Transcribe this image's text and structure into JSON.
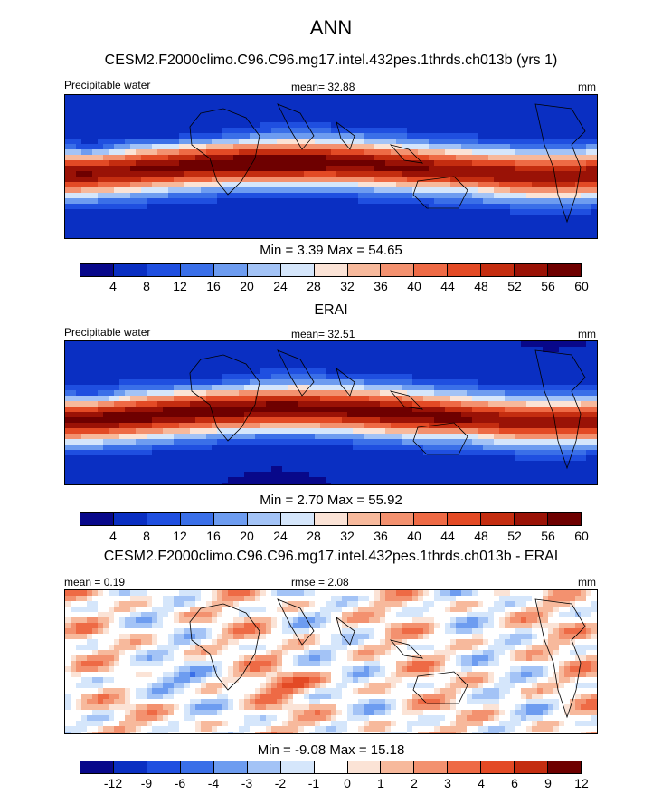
{
  "title": "ANN",
  "colors": {
    "abs_scale": [
      "#08088a",
      "#0a2fc2",
      "#1f4fe0",
      "#3a6fe8",
      "#6d9cf0",
      "#a3c3f6",
      "#d5e6fb",
      "#fbe3d6",
      "#f7b99c",
      "#f3916f",
      "#ee6a45",
      "#e34a25",
      "#c42d10",
      "#9a1206",
      "#6e0000"
    ],
    "diff_scale": [
      "#08088a",
      "#0a2fc2",
      "#1f4fe0",
      "#3a6fe8",
      "#6d9cf0",
      "#a3c3f6",
      "#d5e6fb",
      "#ffffff",
      "#fbe3d6",
      "#f7b99c",
      "#f3916f",
      "#ee6a45",
      "#e34a25",
      "#c42d10",
      "#6e0000"
    ]
  },
  "chart_data": [
    {
      "type": "heatmap",
      "title": "CESM2.F2000climo.C96.C96.mg17.intel.432pes.1thrds.ch013b (yrs 1)",
      "left_label": "Precipitable water",
      "center_label": "mean=  32.88",
      "right_label": "mm",
      "min_max": "Min =    3.39 Max =  54.65",
      "min": 3.39,
      "max": 54.65,
      "mean": 32.88,
      "colorbar_ticks": [
        "4",
        "8",
        "12",
        "16",
        "20",
        "24",
        "28",
        "32",
        "36",
        "40",
        "44",
        "48",
        "52",
        "56",
        "60"
      ]
    },
    {
      "type": "heatmap",
      "title": "ERAI",
      "left_label": "Precipitable water",
      "center_label": "mean=  32.51",
      "right_label": "mm",
      "min_max": "Min =    2.70 Max =  55.92",
      "min": 2.7,
      "max": 55.92,
      "mean": 32.51,
      "colorbar_ticks": [
        "4",
        "8",
        "12",
        "16",
        "20",
        "24",
        "28",
        "32",
        "36",
        "40",
        "44",
        "48",
        "52",
        "56",
        "60"
      ]
    },
    {
      "type": "heatmap",
      "title": "CESM2.F2000climo.C96.C96.mg17.intel.432pes.1thrds.ch013b - ERAI",
      "left_label": "mean =   0.19",
      "center_label": "rmse =   2.08",
      "right_label": "mm",
      "min_max": "Min =  -9.08 Max =  15.18",
      "min": -9.08,
      "max": 15.18,
      "mean": 0.19,
      "rmse": 2.08,
      "colorbar_ticks": [
        "-12",
        "-9",
        "-6",
        "-4",
        "-3",
        "-2",
        "-1",
        "0",
        "1",
        "2",
        "3",
        "4",
        "6",
        "9",
        "12"
      ]
    }
  ]
}
